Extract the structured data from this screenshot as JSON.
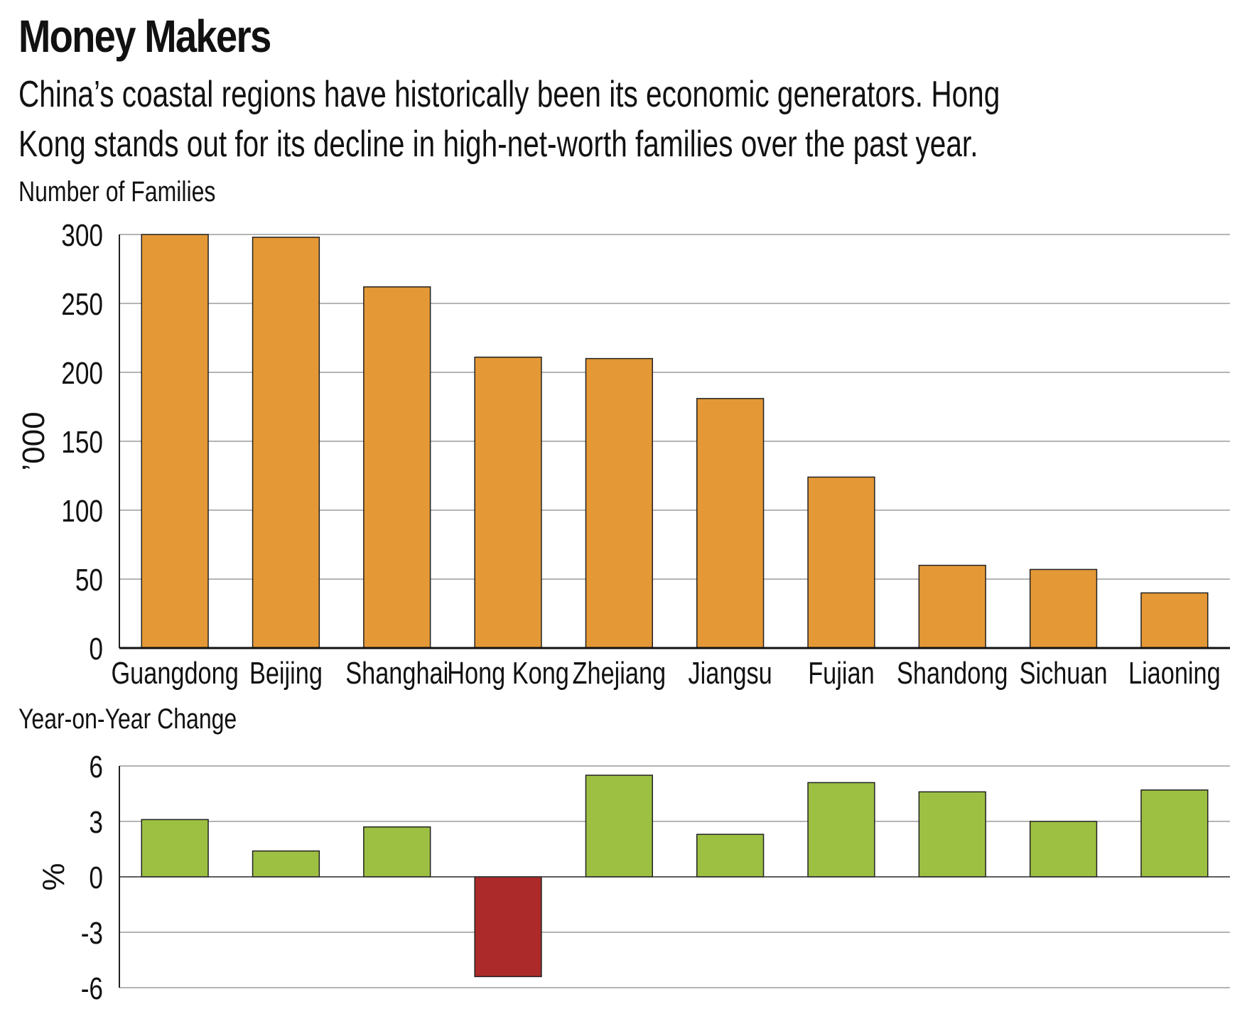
{
  "title": "Money Makers",
  "subtitle": "China’s coastal regions have historically been its economic generators. Hong Kong stands out for its decline in high-net-worth families over the past year.",
  "chart_data": [
    {
      "type": "bar",
      "title": "Number of Families",
      "ylabel": "’000",
      "ylim": [
        0,
        300
      ],
      "yticks": [
        0,
        50,
        100,
        150,
        200,
        250,
        300
      ],
      "grid": true,
      "categories": [
        "Guangdong",
        "Beijing",
        "Shanghai",
        "Hong Kong",
        "Zhejiang",
        "Jiangsu",
        "Fujian",
        "Shandong",
        "Sichuan",
        "Liaoning"
      ],
      "values": [
        300,
        298,
        262,
        211,
        210,
        181,
        124,
        60,
        57,
        40
      ],
      "color": "#E49836"
    },
    {
      "type": "bar",
      "title": "Year-on-Year Change",
      "ylabel": "%",
      "ylim": [
        -6,
        6
      ],
      "yticks": [
        -6,
        -3,
        0,
        3,
        6
      ],
      "grid": true,
      "categories": [
        "Guangdong",
        "Beijing",
        "Shanghai",
        "Hong Kong",
        "Zhejiang",
        "Jiangsu",
        "Fujian",
        "Shandong",
        "Sichuan",
        "Liaoning"
      ],
      "values": [
        3.1,
        1.4,
        2.7,
        -5.4,
        5.5,
        2.3,
        5.1,
        4.6,
        3.0,
        4.7
      ],
      "positive_color": "#9DC043",
      "negative_color": "#AD2A2A"
    }
  ]
}
